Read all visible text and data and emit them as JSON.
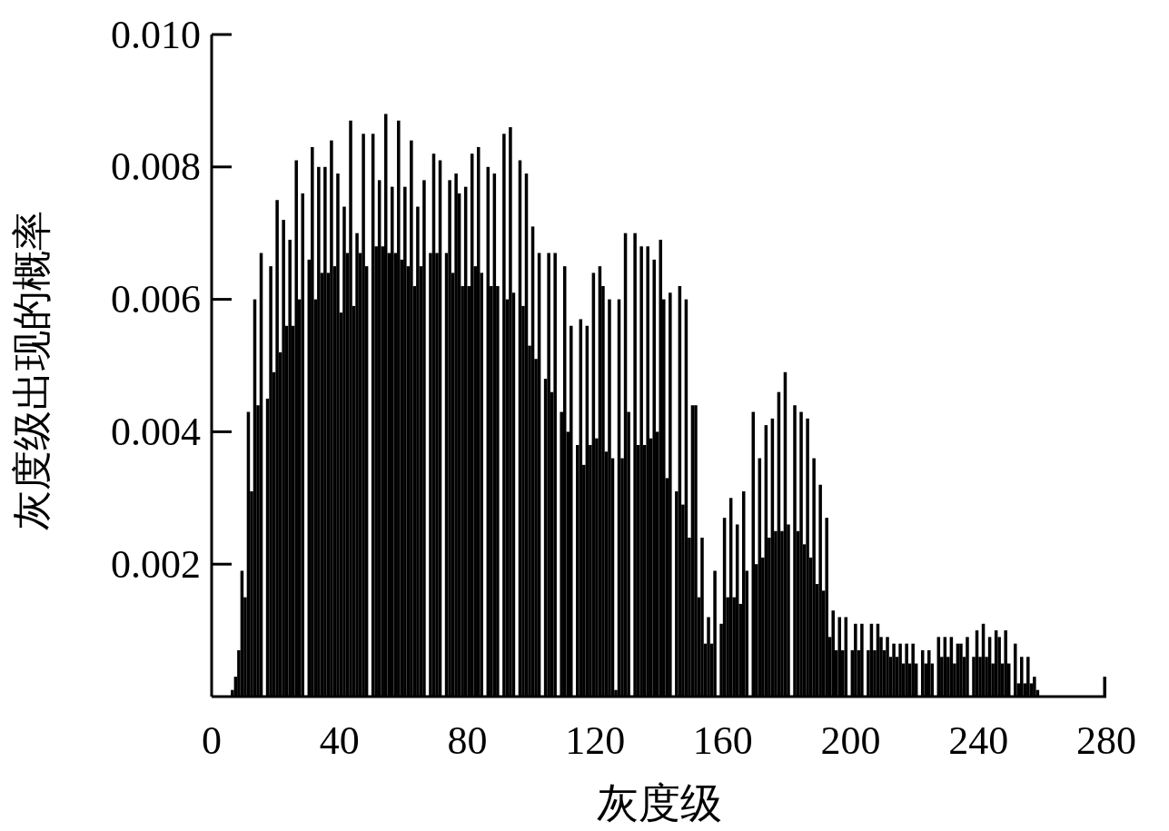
{
  "chart_data": {
    "type": "histogram",
    "xlabel": "灰度级",
    "ylabel": "灰度级出现的概率",
    "color": "#000000",
    "xlim": [
      0,
      280
    ],
    "ylim": [
      0,
      0.01
    ],
    "xticks": [
      0,
      40,
      80,
      120,
      160,
      200,
      240,
      280
    ],
    "yticks": [
      {
        "value": 0.002,
        "label": "0.002"
      },
      {
        "value": 0.004,
        "label": "0.004"
      },
      {
        "value": 0.006,
        "label": "0.006"
      },
      {
        "value": 0.008,
        "label": "0.008"
      },
      {
        "value": 0.01,
        "label": "0.010"
      }
    ],
    "bins": [
      0,
      1,
      2,
      3,
      4,
      5,
      6,
      7,
      8,
      9,
      10,
      11,
      12,
      13,
      14,
      15,
      16,
      17,
      18,
      19,
      20,
      21,
      22,
      23,
      24,
      25,
      26,
      27,
      28,
      29,
      30,
      31,
      32,
      33,
      34,
      35,
      36,
      37,
      38,
      39,
      40,
      41,
      42,
      43,
      44,
      45,
      46,
      47,
      48,
      49,
      50,
      51,
      52,
      53,
      54,
      55,
      56,
      57,
      58,
      59,
      60,
      61,
      62,
      63,
      64,
      65,
      66,
      67,
      68,
      69,
      70,
      71,
      72,
      73,
      74,
      75,
      76,
      77,
      78,
      79,
      80,
      81,
      82,
      83,
      84,
      85,
      86,
      87,
      88,
      89,
      90,
      91,
      92,
      93,
      94,
      95,
      96,
      97,
      98,
      99,
      100,
      101,
      102,
      103,
      104,
      105,
      106,
      107,
      108,
      109,
      110,
      111,
      112,
      113,
      114,
      115,
      116,
      117,
      118,
      119,
      120,
      121,
      122,
      123,
      124,
      125,
      126,
      127,
      128,
      129,
      130,
      131,
      132,
      133,
      134,
      135,
      136,
      137,
      138,
      139,
      140,
      141,
      142,
      143,
      144,
      145,
      146,
      147,
      148,
      149,
      150,
      151,
      152,
      153,
      154,
      155,
      156,
      157,
      158,
      159,
      160,
      161,
      162,
      163,
      164,
      165,
      166,
      167,
      168,
      169,
      170,
      171,
      172,
      173,
      174,
      175,
      176,
      177,
      178,
      179,
      180,
      181,
      182,
      183,
      184,
      185,
      186,
      187,
      188,
      189,
      190,
      191,
      192,
      193,
      194,
      195,
      196,
      197,
      198,
      199,
      200,
      201,
      202,
      203,
      204,
      205,
      206,
      207,
      208,
      209,
      210,
      211,
      212,
      213,
      214,
      215,
      216,
      217,
      218,
      219,
      220,
      221,
      222,
      223,
      224,
      225,
      226,
      227,
      228,
      229,
      230,
      231,
      232,
      233,
      234,
      235,
      236,
      237,
      238,
      239,
      240,
      241,
      242,
      243,
      244,
      245,
      246,
      247,
      248,
      249,
      250,
      251,
      252,
      253,
      254,
      255,
      256,
      257,
      258,
      259,
      260,
      261,
      262,
      263,
      264,
      265,
      266,
      267,
      268,
      269,
      270,
      271,
      272,
      273,
      274,
      275,
      276,
      277,
      278,
      279,
      280
    ],
    "values": [
      0,
      0,
      0,
      0,
      0,
      0,
      0.0001,
      0.0003,
      0.0007,
      0.0019,
      0.0015,
      0.0043,
      0.0031,
      0.006,
      0.0044,
      0.0067,
      0,
      0.0045,
      0.0065,
      0.0049,
      0.0075,
      0.0052,
      0.0072,
      0.0056,
      0.0069,
      0.0056,
      0.0081,
      0.006,
      0.0076,
      0,
      0.0066,
      0.0083,
      0.006,
      0.008,
      0.0064,
      0.008,
      0.0064,
      0.0084,
      0.0065,
      0.0079,
      0.0058,
      0.0074,
      0.0067,
      0.0087,
      0.0059,
      0.007,
      0.0067,
      0.0085,
      0.0065,
      0,
      0.0085,
      0.0068,
      0.0078,
      0.0068,
      0.0088,
      0.0067,
      0.0077,
      0.0067,
      0.0087,
      0.0066,
      0.0077,
      0.0065,
      0.0084,
      0.0062,
      0.0074,
      0.0065,
      0.0078,
      0,
      0.0067,
      0.0082,
      0.0067,
      0.0081,
      0,
      0.0067,
      0.0078,
      0.0064,
      0.0079,
      0.0076,
      0.0062,
      0.0077,
      0.0062,
      0.0082,
      0.0065,
      0.0083,
      0.0064,
      0,
      0.008,
      0.0062,
      0.0079,
      0.0062,
      0,
      0.0085,
      0.006,
      0.0086,
      0.0061,
      0,
      0.0081,
      0.0059,
      0.0079,
      0.0053,
      0.0071,
      0.0051,
      0.0067,
      0,
      0.0048,
      0.0067,
      0.0046,
      0.0067,
      0,
      0.0043,
      0.0065,
      0.004,
      0.0056,
      0,
      0.0038,
      0.0057,
      0.0035,
      0.0056,
      0.0038,
      0.0064,
      0.0039,
      0.0065,
      0.0062,
      0.0037,
      0.006,
      0.0036,
      0.0001,
      0.006,
      0.0036,
      0.007,
      0.0043,
      0,
      0.007,
      0.0038,
      0.0068,
      0.0038,
      0.0068,
      0.0039,
      0.0066,
      0.004,
      0.0069,
      0.006,
      0.0033,
      0.0061,
      0,
      0.0031,
      0.0062,
      0.0029,
      0.006,
      0.0024,
      0.0044,
      0.0044,
      0.0015,
      0.0024,
      0.0008,
      0.0012,
      0.0008,
      0.0019,
      0,
      0.0011,
      0.0027,
      0.0015,
      0.003,
      0.0015,
      0.0026,
      0.0014,
      0.0031,
      0.0019,
      0,
      0.0043,
      0.002,
      0.0036,
      0.0021,
      0.0041,
      0.0024,
      0.0042,
      0.0025,
      0.0046,
      0.0025,
      0.0049,
      0.0026,
      0,
      0.0044,
      0.0025,
      0.0043,
      0.0023,
      0.0042,
      0.0021,
      0.0036,
      0.0017,
      0.0032,
      0.0016,
      0.0027,
      0.0009,
      0.0013,
      0.0007,
      0.0012,
      0.0007,
      0.0012,
      0,
      0.0007,
      0.0011,
      0.0007,
      0.0011,
      0,
      0.0007,
      0.0011,
      0.0007,
      0.0011,
      0.0009,
      0.0007,
      0.0009,
      0.0006,
      0.0008,
      0.0006,
      0.0008,
      0.0005,
      0.0008,
      0.0005,
      0.0008,
      0.0005,
      0,
      0.0007,
      0.0005,
      0.0007,
      0.0005,
      0,
      0.0009,
      0.0006,
      0.0009,
      0.0006,
      0.0009,
      0.0005,
      0.0008,
      0.0008,
      0.0006,
      0.0009,
      0,
      0.0006,
      0.001,
      0.0006,
      0.0011,
      0.0006,
      0.0009,
      0.0005,
      0.001,
      0.0009,
      0.0005,
      0.001,
      0.0005,
      0,
      0.0008,
      0.0002,
      0.0006,
      0.0002,
      0.0006,
      0.0002,
      0.0003,
      0.0001,
      0,
      0,
      0,
      0,
      0,
      0,
      0,
      0,
      0,
      0,
      0,
      0,
      0,
      0,
      0,
      0,
      0,
      0,
      0,
      0,
      0.0003
    ]
  }
}
